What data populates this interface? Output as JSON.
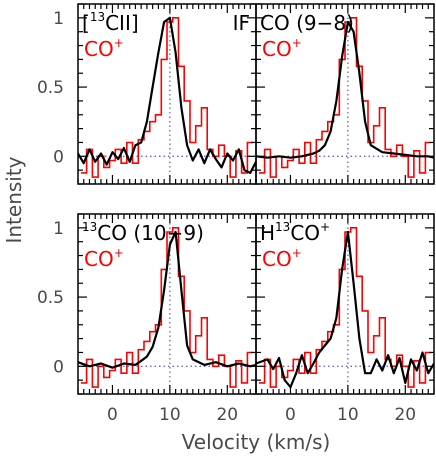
{
  "chart_data": {
    "type": "line",
    "xlabel": "Velocity (km/s)",
    "ylabel": "Intensity",
    "xlim": [
      -6,
      25
    ],
    "ylim": [
      -0.2,
      1.1
    ],
    "x_ticks": [
      0,
      10,
      20
    ],
    "y_ticks": [
      "0",
      "0.5",
      "1"
    ],
    "reference_velocity": 10,
    "reference_intensity": 0,
    "colors": {
      "reference": "#000000",
      "reference_lines": "#6666cc",
      "comparison": "#ff0000",
      "frame": "#000000"
    },
    "panels": [
      {
        "id": "c13ii",
        "label_pre": "[",
        "label_sup": "13",
        "label_main": "CII]",
        "label_post": "",
        "extra_label": "IF",
        "comparison_label": "CO",
        "comparison_sup": "+",
        "reference_series": {
          "style": "line",
          "x": [
            -6,
            -5,
            -4,
            -3,
            -2,
            -1,
            0,
            1,
            2,
            3,
            4,
            5,
            6,
            7,
            8,
            9,
            10,
            11,
            12,
            13,
            14,
            15,
            16,
            17,
            18,
            19,
            20,
            21,
            22,
            23,
            24,
            25
          ],
          "y": [
            0.02,
            -0.05,
            0.05,
            -0.04,
            0.02,
            -0.06,
            0.03,
            -0.02,
            0.06,
            -0.04,
            0.08,
            0.1,
            0.25,
            0.5,
            0.75,
            0.97,
            1.0,
            0.75,
            0.35,
            0.08,
            -0.03,
            0.05,
            -0.05,
            0.05,
            -0.02,
            -0.08,
            0.02,
            -0.03,
            0.05,
            -0.1,
            -0.12,
            -0.04
          ]
        },
        "comparison_series": {
          "style": "step",
          "x": [
            -5,
            -4,
            -3,
            -2,
            -1,
            0,
            1,
            2,
            3,
            4,
            5,
            6,
            7,
            8,
            9,
            10,
            11,
            12,
            13,
            14,
            15,
            16,
            17,
            18,
            19,
            20,
            21,
            22,
            23,
            24
          ],
          "y": [
            -0.12,
            0.05,
            -0.15,
            0.0,
            -0.08,
            -0.03,
            0.05,
            -0.05,
            0.1,
            -0.05,
            0.12,
            0.18,
            0.25,
            0.3,
            0.7,
            0.97,
            1.0,
            0.65,
            0.4,
            0.1,
            0.22,
            0.35,
            0.05,
            0.0,
            0.08,
            0.0,
            -0.15,
            0.04,
            -0.12,
            0.1
          ]
        }
      },
      {
        "id": "co98",
        "label_pre": "",
        "label_sup": "",
        "label_main": "CO (9−8)",
        "label_post": "",
        "extra_label": "",
        "comparison_label": "CO",
        "comparison_sup": "+",
        "reference_series": {
          "style": "line",
          "x": [
            -6,
            -4,
            -2,
            0,
            2,
            4,
            5,
            6,
            7,
            8,
            9,
            10,
            11,
            12,
            13,
            14,
            16,
            18,
            20,
            22,
            24,
            25
          ],
          "y": [
            0.0,
            -0.01,
            0.0,
            -0.01,
            0.0,
            0.02,
            0.04,
            0.08,
            0.18,
            0.4,
            0.72,
            0.97,
            0.9,
            0.6,
            0.25,
            0.08,
            0.03,
            0.02,
            0.01,
            0.0,
            0.0,
            -0.01
          ]
        },
        "comparison_series": {
          "style": "step",
          "x": [
            -5,
            -4,
            -3,
            -2,
            -1,
            0,
            1,
            2,
            3,
            4,
            5,
            6,
            7,
            8,
            9,
            10,
            11,
            12,
            13,
            14,
            15,
            16,
            17,
            18,
            19,
            20,
            21,
            22,
            23,
            24
          ],
          "y": [
            -0.12,
            0.05,
            -0.15,
            0.0,
            -0.08,
            -0.03,
            0.05,
            -0.05,
            0.1,
            -0.05,
            0.12,
            0.18,
            0.25,
            0.3,
            0.7,
            0.97,
            1.0,
            0.65,
            0.4,
            0.1,
            0.22,
            0.35,
            0.05,
            0.0,
            0.08,
            0.0,
            -0.15,
            0.04,
            -0.12,
            0.1
          ]
        }
      },
      {
        "id": "c13o109",
        "label_pre": "",
        "label_sup": "13",
        "label_main": "CO (10−9)",
        "label_post": "",
        "extra_label": "",
        "comparison_label": "CO",
        "comparison_sup": "+",
        "reference_series": {
          "style": "line",
          "x": [
            -6,
            -4,
            -2,
            0,
            2,
            4,
            5,
            6,
            7,
            8,
            9,
            10,
            11,
            12,
            13,
            14,
            16,
            18,
            20,
            22,
            24,
            25
          ],
          "y": [
            0.03,
            0.0,
            0.02,
            -0.01,
            0.02,
            0.01,
            0.04,
            0.07,
            0.14,
            0.28,
            0.55,
            0.88,
            0.97,
            0.55,
            0.15,
            0.05,
            0.01,
            0.03,
            0.0,
            0.02,
            0.0,
            0.01
          ]
        },
        "comparison_series": {
          "style": "step",
          "x": [
            -5,
            -4,
            -3,
            -2,
            -1,
            0,
            1,
            2,
            3,
            4,
            5,
            6,
            7,
            8,
            9,
            10,
            11,
            12,
            13,
            14,
            15,
            16,
            17,
            18,
            19,
            20,
            21,
            22,
            23,
            24
          ],
          "y": [
            -0.12,
            0.05,
            -0.15,
            0.0,
            -0.08,
            -0.03,
            0.05,
            -0.05,
            0.1,
            -0.05,
            0.12,
            0.18,
            0.25,
            0.3,
            0.7,
            0.97,
            1.0,
            0.65,
            0.4,
            0.1,
            0.22,
            0.35,
            0.05,
            0.0,
            0.08,
            0.0,
            -0.15,
            0.04,
            -0.12,
            0.1
          ]
        }
      },
      {
        "id": "h13co",
        "label_pre": "H",
        "label_sup": "13",
        "label_main": "CO",
        "label_post": "+",
        "extra_label": "",
        "comparison_label": "CO",
        "comparison_sup": "+",
        "reference_series": {
          "style": "line",
          "x": [
            -6,
            -4,
            -3,
            -2,
            -1,
            0,
            1,
            2,
            3,
            4,
            5,
            6,
            7,
            8,
            9,
            10,
            11,
            12,
            13,
            14,
            15,
            16,
            17,
            18,
            19,
            20,
            21,
            22,
            23,
            24,
            25
          ],
          "y": [
            0.02,
            0.05,
            -0.02,
            0.06,
            -0.1,
            -0.15,
            -0.05,
            0.08,
            -0.05,
            0.02,
            0.1,
            0.15,
            0.2,
            0.35,
            0.7,
            0.97,
            0.6,
            0.2,
            -0.05,
            -0.05,
            0.05,
            -0.03,
            0.08,
            -0.05,
            0.06,
            -0.12,
            0.05,
            -0.03,
            0.1,
            -0.05,
            0.02
          ]
        },
        "comparison_series": {
          "style": "step",
          "x": [
            -5,
            -4,
            -3,
            -2,
            -1,
            0,
            1,
            2,
            3,
            4,
            5,
            6,
            7,
            8,
            9,
            10,
            11,
            12,
            13,
            14,
            15,
            16,
            17,
            18,
            19,
            20,
            21,
            22,
            23,
            24
          ],
          "y": [
            -0.12,
            0.05,
            -0.15,
            0.0,
            -0.08,
            -0.03,
            0.05,
            -0.05,
            0.1,
            -0.05,
            0.12,
            0.18,
            0.25,
            0.3,
            0.7,
            0.97,
            1.0,
            0.65,
            0.4,
            0.1,
            0.22,
            0.35,
            0.05,
            0.0,
            0.08,
            0.0,
            -0.15,
            0.04,
            -0.12,
            0.1
          ]
        }
      }
    ]
  }
}
